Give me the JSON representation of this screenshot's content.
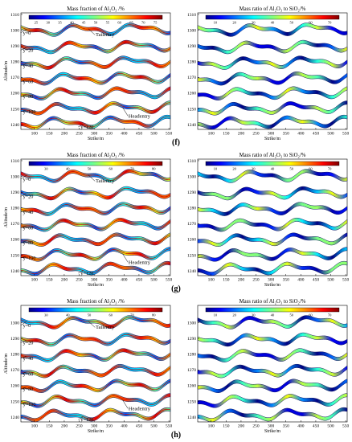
{
  "panel_labels": [
    "(f)",
    "(g)",
    "(h)"
  ],
  "chart_data": [
    {
      "type": "area",
      "row": "f",
      "title": "Mass fraction of Al₂O₃ /%",
      "xlabel": "Strike/m",
      "ylabel": "Altitude/m",
      "xlim": [
        55,
        555
      ],
      "ylim": [
        1237,
        1311
      ],
      "x_ticks": [
        100,
        150,
        200,
        250,
        300,
        350,
        400,
        450,
        500,
        550
      ],
      "y_ticks": [
        1240,
        1250,
        1260,
        1270,
        1280,
        1290,
        1300,
        1310
      ],
      "colorbar_ticks": [
        25,
        30,
        35,
        40,
        45,
        50,
        55,
        60,
        65,
        70,
        75
      ],
      "colorbar_range": [
        22,
        78
      ],
      "layer_labels": [
        "y=0",
        "y=20",
        "y=40",
        "y=60",
        "y=80",
        "y=100",
        "y=120"
      ],
      "annotations": [
        "Tailentry",
        "Headentry"
      ],
      "layers": [
        {
          "name": "y=0",
          "base": 1300.5
        },
        {
          "name": "y=20",
          "base": 1289.5
        },
        {
          "name": "y=40",
          "base": 1279.5
        },
        {
          "name": "y=60",
          "base": 1269.5
        },
        {
          "name": "y=80",
          "base": 1260.0
        },
        {
          "name": "y=100",
          "base": 1250.5
        },
        {
          "name": "y=120",
          "base": 1241.5
        }
      ]
    },
    {
      "type": "area",
      "row": "f",
      "title": "Mass ratio of Al₂O₃ to SiO₂/%",
      "xlabel": "Strike/m",
      "ylabel": "",
      "xlim": [
        55,
        555
      ],
      "ylim": [
        1237,
        1311
      ],
      "x_ticks": [
        100,
        150,
        200,
        250,
        300,
        350,
        400,
        450,
        500,
        550
      ],
      "y_ticks": [
        1240,
        1250,
        1260,
        1270,
        1280,
        1290,
        1300,
        1310
      ],
      "colorbar_ticks": [
        10,
        20,
        30,
        40,
        50,
        60,
        70
      ],
      "colorbar_range": [
        5,
        75
      ],
      "layers": [
        {
          "name": "y=0",
          "base": 1300.5
        },
        {
          "name": "y=20",
          "base": 1289.5
        },
        {
          "name": "y=40",
          "base": 1279.5
        },
        {
          "name": "y=60",
          "base": 1269.5
        },
        {
          "name": "y=80",
          "base": 1260.0
        },
        {
          "name": "y=100",
          "base": 1250.5
        },
        {
          "name": "y=120",
          "base": 1241.5
        }
      ]
    },
    {
      "type": "area",
      "row": "g",
      "title": "Mass fraction of Al₂O₃ /%",
      "xlabel": "Strike/m",
      "ylabel": "Altitude/m",
      "xlim": [
        55,
        555
      ],
      "ylim": [
        1237,
        1311
      ],
      "x_ticks": [
        100,
        150,
        200,
        250,
        300,
        350,
        400,
        450,
        500,
        550
      ],
      "y_ticks": [
        1240,
        1250,
        1260,
        1270,
        1280,
        1290,
        1300,
        1310
      ],
      "colorbar_ticks": [
        30,
        40,
        50,
        60,
        70,
        80
      ],
      "colorbar_range": [
        22,
        84
      ],
      "layer_labels": [
        "y=0",
        "y=20",
        "y=40",
        "y=60",
        "y=80",
        "y=100",
        "y=120"
      ],
      "annotations": [
        "Tailentry",
        "Headentry"
      ],
      "layers": [
        {
          "name": "y=0",
          "base": 1300.5
        },
        {
          "name": "y=20",
          "base": 1289.5
        },
        {
          "name": "y=40",
          "base": 1279.5
        },
        {
          "name": "y=60",
          "base": 1269.5
        },
        {
          "name": "y=80",
          "base": 1260.0
        },
        {
          "name": "y=100",
          "base": 1250.5
        },
        {
          "name": "y=120",
          "base": 1241.5
        }
      ]
    },
    {
      "type": "area",
      "row": "g",
      "title": "Mass ratio of Al₂O₃ to SiO₂/%",
      "xlabel": "Strike/m",
      "ylabel": "",
      "xlim": [
        55,
        555
      ],
      "ylim": [
        1237,
        1311
      ],
      "x_ticks": [
        100,
        150,
        200,
        250,
        300,
        350,
        400,
        450,
        500,
        550
      ],
      "y_ticks": [
        1240,
        1250,
        1260,
        1270,
        1280,
        1290,
        1300,
        1310
      ],
      "colorbar_ticks": [
        10,
        20,
        30,
        40,
        50,
        60,
        70
      ],
      "colorbar_range": [
        5,
        75
      ],
      "layers": [
        {
          "name": "y=0",
          "base": 1300.5
        },
        {
          "name": "y=20",
          "base": 1289.5
        },
        {
          "name": "y=40",
          "base": 1279.5
        },
        {
          "name": "y=60",
          "base": 1269.5
        },
        {
          "name": "y=80",
          "base": 1260.0
        },
        {
          "name": "y=100",
          "base": 1250.5
        },
        {
          "name": "y=120",
          "base": 1241.5
        }
      ]
    },
    {
      "type": "area",
      "row": "h",
      "title": "Mass fraction of Al₂O₃ /%",
      "xlabel": "Strike/m",
      "ylabel": "Altitude/m",
      "xlim": [
        55,
        555
      ],
      "ylim": [
        1237,
        1311
      ],
      "x_ticks": [
        100,
        150,
        200,
        250,
        300,
        350,
        400,
        450,
        500,
        550
      ],
      "y_ticks": [
        1240,
        1250,
        1260,
        1270,
        1280,
        1290,
        1300
      ],
      "colorbar_ticks": [
        30,
        40,
        50,
        60,
        70,
        80
      ],
      "colorbar_range": [
        22,
        84
      ],
      "layer_labels": [
        "y=0",
        "y=20",
        "y=40",
        "y=60",
        "y=80",
        "y=100",
        "y=120"
      ],
      "annotations": [
        "Tailentry",
        "Headentry"
      ],
      "layers": [
        {
          "name": "y=0",
          "base": 1300.5
        },
        {
          "name": "y=20",
          "base": 1289.5
        },
        {
          "name": "y=40",
          "base": 1279.5
        },
        {
          "name": "y=60",
          "base": 1269.5
        },
        {
          "name": "y=80",
          "base": 1260.0
        },
        {
          "name": "y=100",
          "base": 1250.5
        },
        {
          "name": "y=120",
          "base": 1241.5
        }
      ]
    },
    {
      "type": "area",
      "row": "h",
      "title": "Mass ratio of Al₂O₃ to SiO₂/%",
      "xlabel": "Strike/m",
      "ylabel": "",
      "xlim": [
        55,
        555
      ],
      "ylim": [
        1237,
        1311
      ],
      "x_ticks": [
        100,
        150,
        200,
        250,
        300,
        350,
        400,
        450,
        500,
        550
      ],
      "y_ticks": [
        1240,
        1250,
        1260,
        1270,
        1280,
        1290,
        1300
      ],
      "colorbar_ticks": [
        10,
        20,
        30,
        40,
        50,
        60,
        70
      ],
      "colorbar_range": [
        5,
        75
      ],
      "layers": [
        {
          "name": "y=0",
          "base": 1300.5
        },
        {
          "name": "y=20",
          "base": 1289.5
        },
        {
          "name": "y=40",
          "base": 1279.5
        },
        {
          "name": "y=60",
          "base": 1269.5
        },
        {
          "name": "y=80",
          "base": 1260.0
        },
        {
          "name": "y=100",
          "base": 1250.5
        },
        {
          "name": "y=120",
          "base": 1241.5
        }
      ]
    }
  ]
}
